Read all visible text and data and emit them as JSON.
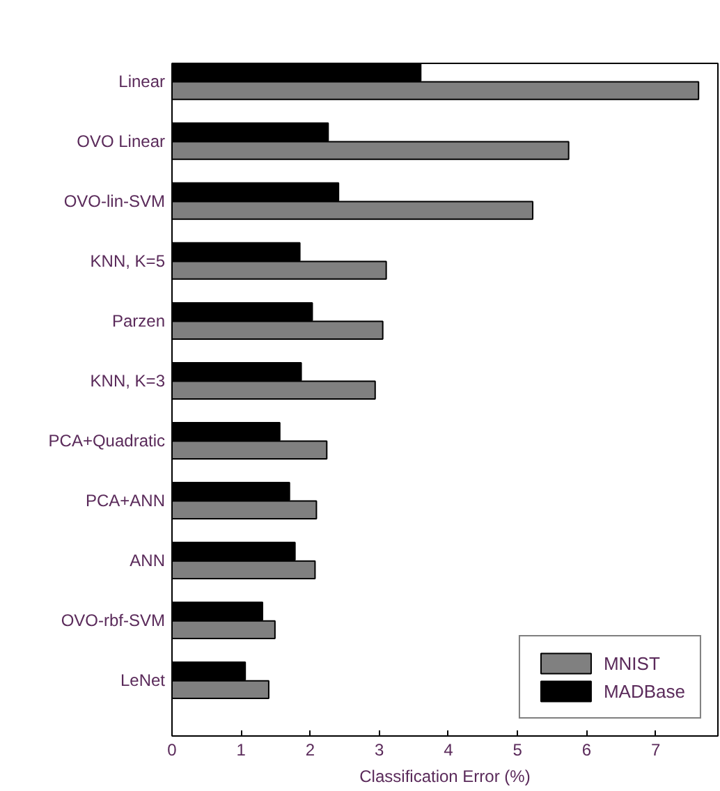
{
  "chart_data": {
    "type": "bar",
    "orientation": "horizontal",
    "xlabel": "Classification Error (%)",
    "categories": [
      "Linear",
      "OVO Linear",
      "OVO-lin-SVM",
      "KNN, K=5",
      "Parzen",
      "KNN, K=3",
      "PCA+Quadratic",
      "PCA+ANN",
      "ANN",
      "OVO-rbf-SVM",
      "LeNet"
    ],
    "series": [
      {
        "name": "MNIST",
        "color": "#808080",
        "values": [
          7.62,
          5.74,
          5.22,
          3.1,
          3.05,
          2.94,
          2.24,
          2.09,
          2.07,
          1.49,
          1.4
        ]
      },
      {
        "name": "MADBase",
        "color": "#000000",
        "values": [
          3.6,
          2.26,
          2.41,
          1.85,
          2.03,
          1.87,
          1.56,
          1.7,
          1.78,
          1.31,
          1.06
        ]
      }
    ],
    "xlim": [
      0,
      7.9
    ],
    "xticks": [
      0,
      1,
      2,
      3,
      4,
      5,
      6,
      7
    ],
    "grid": false,
    "legend": "bottom right"
  }
}
